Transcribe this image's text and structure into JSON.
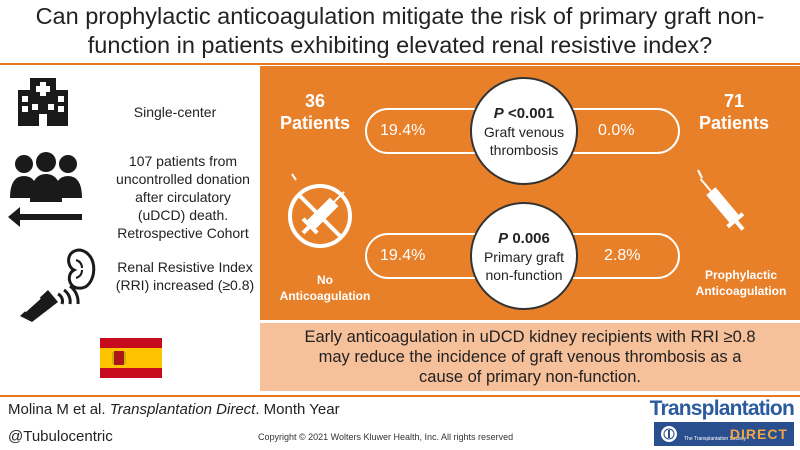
{
  "title": {
    "line1": "Can prophylactic anticoagulation mitigate the risk of primary graft non-",
    "line2": "function in patients exhibiting elevated renal resistive index?"
  },
  "left": {
    "item1": "Single-center",
    "item2": [
      "107 patients from",
      "uncontrolled donation",
      "after circulatory",
      "(uDCD) death.",
      "Retrospective Cohort"
    ],
    "item3": [
      "Renal Resistive Index",
      "(RRI) increased (≥0.8)"
    ]
  },
  "groups": {
    "left_count": [
      "36",
      "Patients"
    ],
    "right_count": [
      "71",
      "Patients"
    ],
    "left_label": [
      "No",
      "Anticoagulation"
    ],
    "right_label": [
      "Prophylactic",
      "Anticoagulation"
    ]
  },
  "outcomes": [
    {
      "p_label": "P",
      "p_value": "<0.001",
      "name": [
        "Graft venous",
        "thrombosis"
      ],
      "left_pct": "19.4%",
      "right_pct": "0.0%"
    },
    {
      "p_label": "P",
      "p_value": "0.006",
      "name": [
        "Primary graft",
        "non-function"
      ],
      "left_pct": "19.4%",
      "right_pct": "2.8%"
    }
  ],
  "conclusion": [
    "Early anticoagulation in uDCD kidney recipients with RRI ≥0.8",
    "may reduce the incidence of graft venous thrombosis as a",
    "cause of primary non-function."
  ],
  "footer": {
    "citation_authors": "Molina M et al. ",
    "citation_journal": "Transplantation Direct",
    "citation_date": ". Month Year",
    "handle": "@Tubulocentric",
    "copyright": "Copyright © 2021  Wolters Kluwer Health, Inc. All rights reserved"
  },
  "brand": {
    "name": "Transplantation",
    "sub": "DIRECT",
    "society": "The Transplantation Society"
  },
  "colors": {
    "orange": "#e8802a",
    "peach": "#f6c09a",
    "navy": "#2a4f8f",
    "gold": "#f2a541"
  }
}
